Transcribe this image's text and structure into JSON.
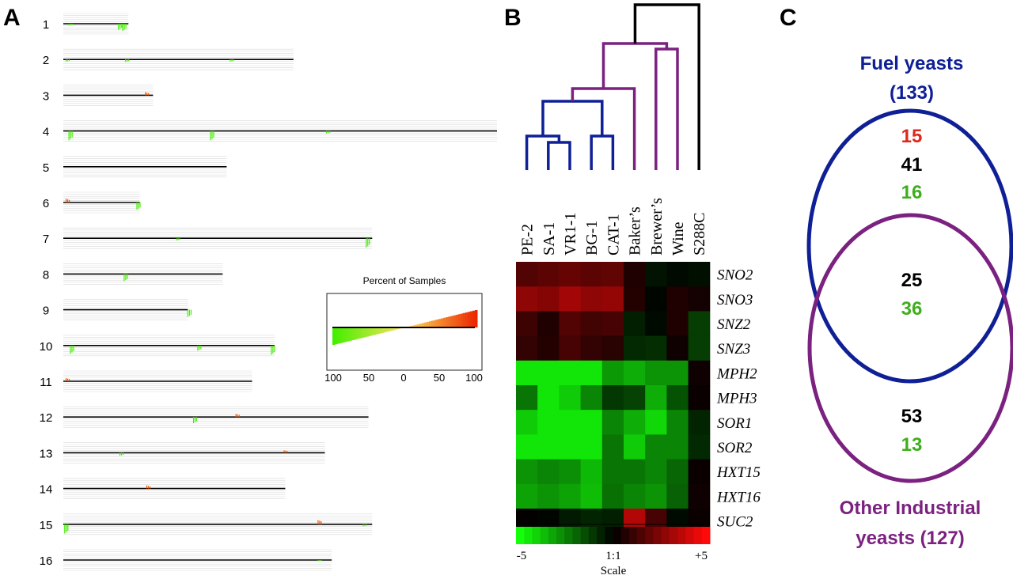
{
  "panels": {
    "a": "A",
    "b": "B",
    "c": "C"
  },
  "colors": {
    "loss": "#44ee00",
    "gain": "#ee5500",
    "fuel": "#0f1f96",
    "other": "#7b2180",
    "outgroup": "#000000",
    "count_red": "#e0271c",
    "count_black": "#000000",
    "count_green": "#3fae1e"
  },
  "chart_data": [
    {
      "type": "genome_cnv_profile",
      "panel": "A",
      "chromosomes": [
        {
          "label": "1",
          "length_kb": 230
        },
        {
          "label": "2",
          "length_kb": 813
        },
        {
          "label": "3",
          "length_kb": 317
        },
        {
          "label": "4",
          "length_kb": 1532
        },
        {
          "label": "5",
          "length_kb": 577
        },
        {
          "label": "6",
          "length_kb": 270
        },
        {
          "label": "7",
          "length_kb": 1091
        },
        {
          "label": "8",
          "length_kb": 563
        },
        {
          "label": "9",
          "length_kb": 440
        },
        {
          "label": "10",
          "length_kb": 746
        },
        {
          "label": "11",
          "length_kb": 667
        },
        {
          "label": "12",
          "length_kb": 1078
        },
        {
          "label": "13",
          "length_kb": 924
        },
        {
          "label": "14",
          "length_kb": 784
        },
        {
          "label": "15",
          "length_kb": 1091
        },
        {
          "label": "16",
          "length_kb": 948
        }
      ],
      "legend": {
        "title": "Percent of Samples",
        "ticks": [
          "100",
          "50",
          "0",
          "50",
          "100"
        ]
      },
      "events": [
        {
          "chr": 0,
          "pos_kb": 20,
          "percent": 8,
          "dir": "loss"
        },
        {
          "chr": 0,
          "pos_kb": 195,
          "percent": 30,
          "dir": "loss"
        },
        {
          "chr": 0,
          "pos_kb": 210,
          "percent": 35,
          "dir": "loss"
        },
        {
          "chr": 1,
          "pos_kb": 10,
          "percent": 10,
          "dir": "loss"
        },
        {
          "chr": 1,
          "pos_kb": 220,
          "percent": 12,
          "dir": "loss"
        },
        {
          "chr": 1,
          "pos_kb": 590,
          "percent": 10,
          "dir": "loss"
        },
        {
          "chr": 2,
          "pos_kb": 290,
          "percent": 15,
          "dir": "gain"
        },
        {
          "chr": 3,
          "pos_kb": 20,
          "percent": 45,
          "dir": "loss"
        },
        {
          "chr": 3,
          "pos_kb": 520,
          "percent": 45,
          "dir": "loss"
        },
        {
          "chr": 3,
          "pos_kb": 930,
          "percent": 12,
          "dir": "loss"
        },
        {
          "chr": 5,
          "pos_kb": 10,
          "percent": 18,
          "dir": "gain"
        },
        {
          "chr": 5,
          "pos_kb": 260,
          "percent": 35,
          "dir": "loss"
        },
        {
          "chr": 6,
          "pos_kb": 1070,
          "percent": 45,
          "dir": "loss"
        },
        {
          "chr": 6,
          "pos_kb": 400,
          "percent": 10,
          "dir": "loss"
        },
        {
          "chr": 7,
          "pos_kb": 215,
          "percent": 35,
          "dir": "loss"
        },
        {
          "chr": 8,
          "pos_kb": 440,
          "percent": 35,
          "dir": "loss"
        },
        {
          "chr": 9,
          "pos_kb": 25,
          "percent": 40,
          "dir": "loss"
        },
        {
          "chr": 9,
          "pos_kb": 475,
          "percent": 25,
          "dir": "loss"
        },
        {
          "chr": 9,
          "pos_kb": 735,
          "percent": 45,
          "dir": "loss"
        },
        {
          "chr": 10,
          "pos_kb": 10,
          "percent": 15,
          "dir": "gain"
        },
        {
          "chr": 11,
          "pos_kb": 460,
          "percent": 30,
          "dir": "loss"
        },
        {
          "chr": 11,
          "pos_kb": 610,
          "percent": 15,
          "dir": "gain"
        },
        {
          "chr": 12,
          "pos_kb": 200,
          "percent": 15,
          "dir": "loss"
        },
        {
          "chr": 12,
          "pos_kb": 780,
          "percent": 12,
          "dir": "gain"
        },
        {
          "chr": 13,
          "pos_kb": 295,
          "percent": 15,
          "dir": "gain"
        },
        {
          "chr": 14,
          "pos_kb": 5,
          "percent": 45,
          "dir": "loss"
        },
        {
          "chr": 14,
          "pos_kb": 900,
          "percent": 20,
          "dir": "gain"
        },
        {
          "chr": 14,
          "pos_kb": 1060,
          "percent": 10,
          "dir": "loss"
        },
        {
          "chr": 15,
          "pos_kb": 900,
          "percent": 5,
          "dir": "loss"
        }
      ]
    },
    {
      "type": "heatmap",
      "panel": "B",
      "strains": [
        "PE-2",
        "SA-1",
        "VR1-1",
        "BG-1",
        "CAT-1",
        "Baker’s",
        "Brewer’s",
        "Wine",
        "S288C"
      ],
      "genes": [
        "SNO2",
        "SNO3",
        "SNZ2",
        "SNZ3",
        "MPH2",
        "MPH3",
        "SOR1",
        "SOR2",
        "HXT15",
        "HXT16",
        "SUC2"
      ],
      "values": [
        [
          1.6,
          1.8,
          2.0,
          1.8,
          1.9,
          0.6,
          -0.4,
          -0.2,
          -0.3
        ],
        [
          2.8,
          2.6,
          3.2,
          2.8,
          2.9,
          0.7,
          -0.1,
          0.6,
          0.4
        ],
        [
          1.2,
          0.6,
          1.6,
          1.3,
          1.4,
          -0.6,
          -0.2,
          0.6,
          -1.2
        ],
        [
          1.0,
          0.7,
          1.4,
          1.0,
          0.8,
          -0.8,
          -0.9,
          0.3,
          -1.2
        ],
        [
          -4.5,
          -4.5,
          -4.5,
          -4.5,
          -3.0,
          -3.4,
          -2.9,
          -2.9,
          0.3
        ],
        [
          -2.3,
          -4.5,
          -4.0,
          -2.6,
          -1.1,
          -1.3,
          -3.4,
          -1.6,
          0.2
        ],
        [
          -4.0,
          -4.5,
          -4.5,
          -4.5,
          -2.6,
          -3.4,
          -4.2,
          -2.6,
          -0.7
        ],
        [
          -4.5,
          -4.5,
          -4.5,
          -4.5,
          -2.3,
          -4.0,
          -2.6,
          -2.6,
          -0.8
        ],
        [
          -2.9,
          -2.6,
          -2.8,
          -3.6,
          -2.3,
          -2.3,
          -2.6,
          -2.0,
          0.2
        ],
        [
          -3.2,
          -2.9,
          -3.2,
          -3.7,
          -2.2,
          -2.6,
          -2.9,
          -1.9,
          0.3
        ],
        [
          0.1,
          -0.1,
          -0.5,
          -0.7,
          -0.6,
          3.5,
          1.4,
          -0.2,
          0.2
        ]
      ],
      "scale": {
        "min": -5,
        "max": 5,
        "min_label": "-5",
        "mid_label": "1:1",
        "max_label": "+5",
        "title": "Scale"
      },
      "dendrogram": {
        "groups": {
          "fuel": [
            0,
            1,
            2,
            3,
            4
          ],
          "other": [
            5,
            6,
            7
          ],
          "outgroup": [
            8
          ]
        }
      }
    },
    {
      "type": "venn",
      "panel": "C",
      "sets": [
        {
          "name": "Fuel yeasts",
          "size_label": "(133)"
        },
        {
          "name": "Other Industrial",
          "size_label": "yeasts (127)"
        }
      ],
      "regions": {
        "fuel_only": [
          "15",
          "41",
          "16"
        ],
        "shared": [
          "25",
          "36"
        ],
        "other_only": [
          "53",
          "13"
        ]
      }
    }
  ]
}
